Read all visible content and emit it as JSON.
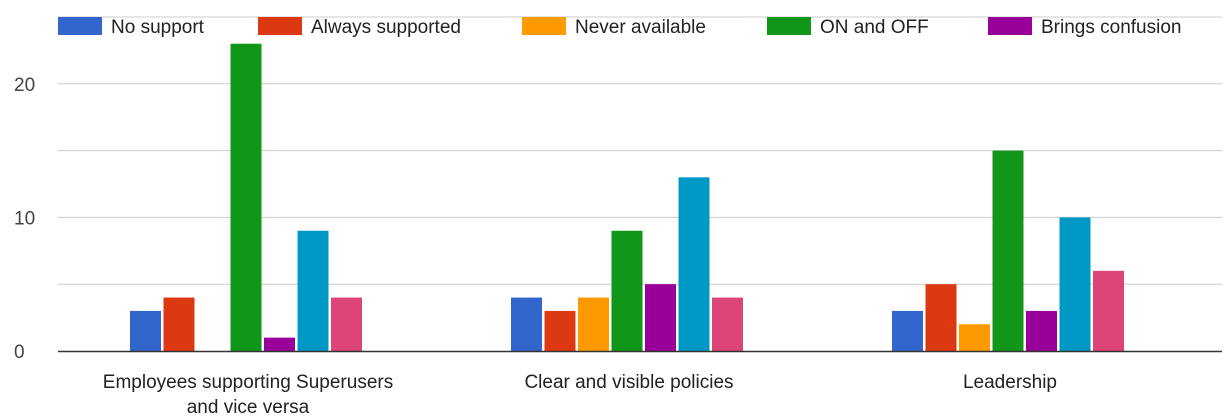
{
  "chart_data": {
    "type": "bar",
    "categories": [
      [
        "Employees supporting Superusers",
        "and vice versa"
      ],
      [
        "Clear and visible policies"
      ],
      [
        "Leadership"
      ]
    ],
    "series": [
      {
        "name": "No support",
        "color": "#3366cc",
        "values": [
          3,
          4,
          3
        ]
      },
      {
        "name": "Always supported",
        "color": "#dc3912",
        "values": [
          4,
          3,
          5
        ]
      },
      {
        "name": "Never available",
        "color": "#ff9900",
        "values": [
          0,
          4,
          2
        ]
      },
      {
        "name": "ON and OFF",
        "color": "#109618",
        "values": [
          23,
          9,
          15
        ]
      },
      {
        "name": "Brings confusion",
        "color": "#990099",
        "values": [
          1,
          5,
          3
        ]
      },
      {
        "name": "",
        "color": "#0099c6",
        "values": [
          9,
          13,
          10
        ]
      },
      {
        "name": "",
        "color": "#dd4477",
        "values": [
          4,
          4,
          6
        ]
      }
    ],
    "y_ticks": [
      "0",
      "10",
      "20"
    ],
    "ylim": [
      0,
      25
    ],
    "grid": true,
    "legend_position": "top"
  }
}
